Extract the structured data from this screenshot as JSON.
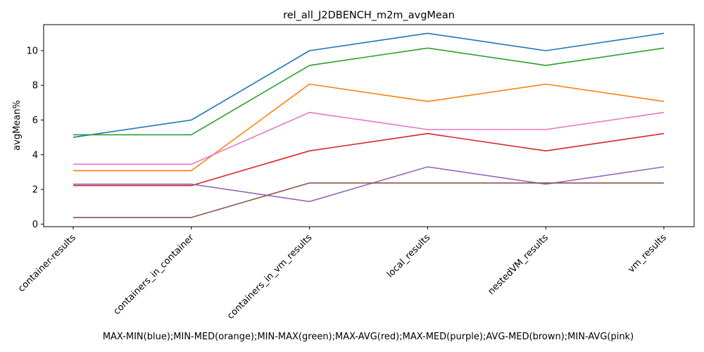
{
  "chart_data": {
    "type": "line",
    "title": "rel_all_J2DBENCH_m2m_avgMean",
    "xlabel": "MAX-MIN(blue);MIN-MED(orange);MIN-MAX(green);MAX-AVG(red);MAX-MED(purple);AVG-MED(brown);MIN-AVG(pink)",
    "ylabel": "avgMean%",
    "categories": [
      "container-results",
      "containers_in_container",
      "containers_in_vm_results",
      "local_results",
      "nestedVM_results",
      "vm_results"
    ],
    "ylim": [
      -0.15,
      11.5
    ],
    "yticks": [
      0,
      2,
      4,
      6,
      8,
      10
    ],
    "grid": false,
    "legend": "none",
    "series": [
      {
        "color": "#1f77b4",
        "values": [
          5.0,
          6.0,
          10.0,
          11.0,
          10.0,
          11.0
        ]
      },
      {
        "color": "#ff7f0e",
        "values": [
          3.08,
          3.08,
          8.07,
          7.07,
          8.07,
          7.07
        ]
      },
      {
        "color": "#2ca02c",
        "values": [
          5.15,
          5.15,
          9.15,
          10.15,
          9.15,
          10.15
        ]
      },
      {
        "color": "#d62728",
        "values": [
          2.22,
          2.22,
          4.22,
          5.22,
          4.22,
          5.22
        ]
      },
      {
        "color": "#9467bd",
        "values": [
          2.3,
          2.3,
          1.3,
          3.3,
          2.3,
          3.3
        ]
      },
      {
        "color": "#8c564b",
        "values": [
          0.38,
          0.38,
          2.37,
          2.37,
          2.37,
          2.37
        ]
      },
      {
        "color": "#e377c2",
        "values": [
          3.45,
          3.45,
          6.44,
          5.45,
          5.45,
          6.44
        ]
      }
    ]
  }
}
